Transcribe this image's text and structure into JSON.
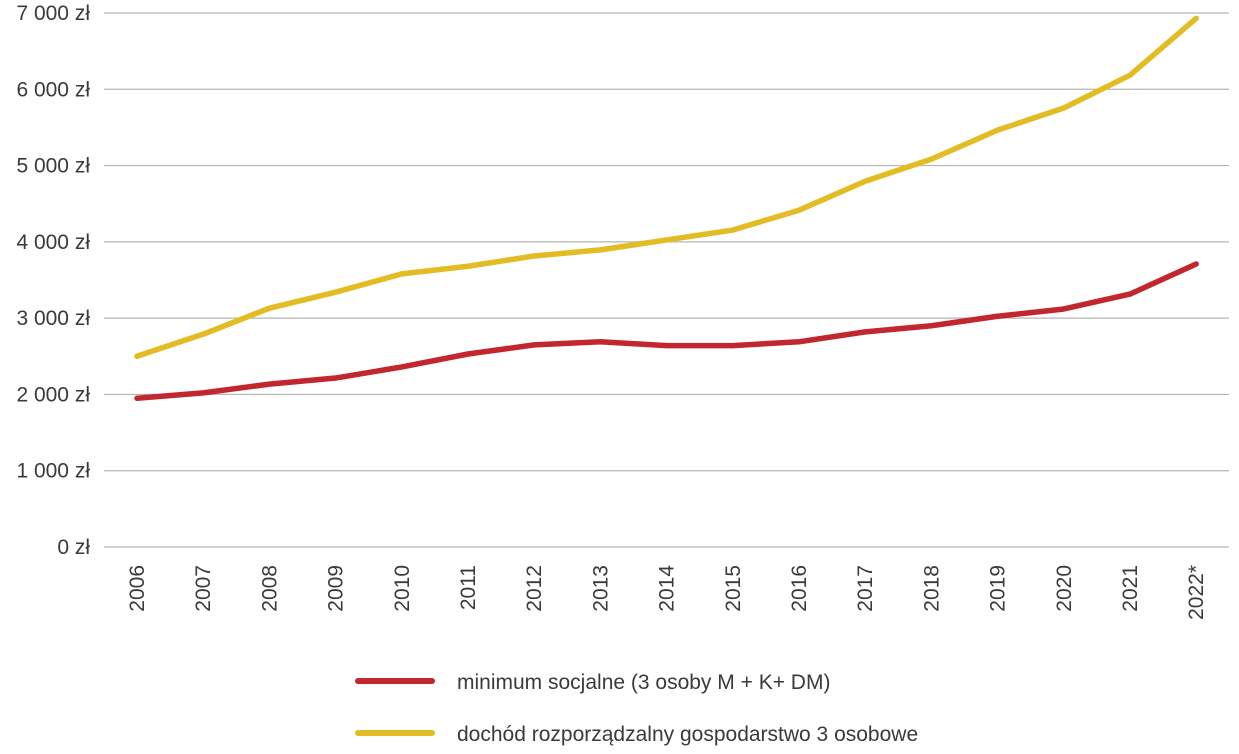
{
  "chart_data": {
    "type": "line",
    "title": "",
    "xlabel": "",
    "ylabel": "",
    "categories": [
      "2006",
      "2007",
      "2008",
      "2009",
      "2010",
      "2011",
      "2012",
      "2013",
      "2014",
      "2015",
      "2016",
      "2017",
      "2018",
      "2019",
      "2020",
      "2021",
      "2022*"
    ],
    "y_ticks": [
      "0 zł",
      "1 000 zł",
      "2 000 zł",
      "3 000 zł",
      "4 000 zł",
      "5 000 zł",
      "6 000 zł",
      "7 000 zł"
    ],
    "ylim": [
      0,
      7000
    ],
    "grid": true,
    "legend_position": "bottom",
    "series": [
      {
        "name": "minimum socjalne (3 osoby M + K+ DM)",
        "color": "#c1272d",
        "values": [
          1950,
          2020,
          2135,
          2215,
          2360,
          2530,
          2650,
          2690,
          2640,
          2640,
          2690,
          2820,
          2900,
          3025,
          3120,
          3315,
          3710
        ]
      },
      {
        "name": "dochód rozporządzalny gospodarstwo 3 osobowe",
        "color": "#e3bc24",
        "values": [
          2500,
          2790,
          3130,
          3340,
          3580,
          3680,
          3815,
          3895,
          4025,
          4155,
          4415,
          4795,
          5085,
          5465,
          5755,
          6185,
          6930
        ]
      }
    ]
  }
}
